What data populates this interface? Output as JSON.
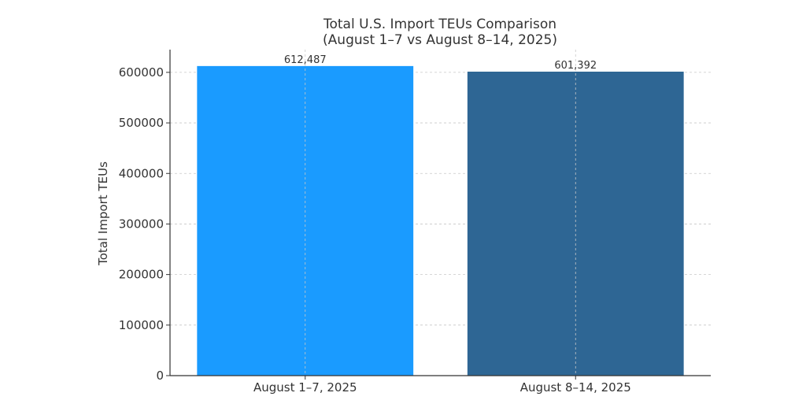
{
  "chart_data": {
    "type": "bar",
    "title": "Total U.S. Import TEUs Comparison",
    "subtitle": "(August 1–7 vs August 8–14, 2025)",
    "xlabel": "",
    "ylabel": "Total Import TEUs",
    "categories": [
      "August 1–7, 2025",
      "August 8–14, 2025"
    ],
    "values": [
      612487,
      601392
    ],
    "value_labels": [
      "612,487",
      "601,392"
    ],
    "bar_colors": [
      "#1a9bff",
      "#2e6694"
    ],
    "ylim": [
      0,
      645000
    ],
    "yticks": [
      0,
      100000,
      200000,
      300000,
      400000,
      500000,
      600000
    ],
    "ytick_labels": [
      "0",
      "100000",
      "200000",
      "300000",
      "400000",
      "500000",
      "600000"
    ],
    "grid": true,
    "legend": false
  }
}
